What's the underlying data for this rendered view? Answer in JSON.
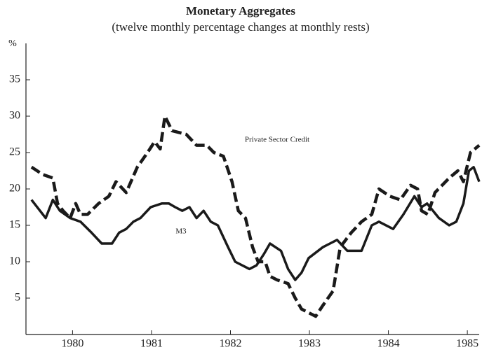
{
  "chart_data": {
    "type": "line",
    "title": "Monetary Aggregates",
    "subtitle": "(twelve monthly percentage changes at monthly rests)",
    "y_label": "%",
    "xlim": [
      1979.91,
      1985.65
    ],
    "xticks": [
      {
        "value": 1980.5,
        "label": "1980"
      },
      {
        "value": 1981.5,
        "label": "1981"
      },
      {
        "value": 1982.5,
        "label": "1982"
      },
      {
        "value": 1983.5,
        "label": "1983"
      },
      {
        "value": 1984.5,
        "label": "1984"
      },
      {
        "value": 1985.5,
        "label": "1985"
      }
    ],
    "ylim": [
      0,
      40
    ],
    "yticks": [
      5,
      10,
      15,
      20,
      25,
      30,
      35
    ],
    "grid": false,
    "annotations": [
      "Private Sector Credit",
      "M3"
    ],
    "series": [
      {
        "name": "Private Sector Credit",
        "color": "#1a1a1a",
        "style": "dashed",
        "x": [
          1979.98,
          1980.12,
          1980.25,
          1980.31,
          1980.38,
          1980.47,
          1980.54,
          1980.6,
          1980.69,
          1980.83,
          1980.96,
          1981.05,
          1981.18,
          1981.32,
          1981.45,
          1981.54,
          1981.61,
          1981.67,
          1981.76,
          1981.94,
          1982.07,
          1982.2,
          1982.29,
          1982.41,
          1982.52,
          1982.6,
          1982.69,
          1982.78,
          1982.85,
          1982.94,
          1983.0,
          1983.09,
          1983.23,
          1983.32,
          1983.4,
          1983.49,
          1983.58,
          1983.67,
          1983.8,
          1983.89,
          1984.03,
          1984.16,
          1984.29,
          1984.38,
          1984.52,
          1984.65,
          1984.78,
          1984.87,
          1984.92,
          1985.0,
          1985.09,
          1985.27,
          1985.38,
          1985.45,
          1985.54,
          1985.65
        ],
        "values": [
          23,
          22,
          21.5,
          18,
          17,
          16,
          18,
          16.5,
          16.5,
          18,
          19,
          21,
          19.5,
          23,
          25,
          26.5,
          25.5,
          30,
          28,
          27.5,
          26,
          26,
          25,
          24.5,
          21,
          17,
          16,
          12,
          10,
          10,
          8,
          7.5,
          7,
          5,
          3.5,
          3,
          2.5,
          4,
          6,
          12,
          14,
          15.5,
          16.5,
          20,
          19,
          18.5,
          20.5,
          20,
          17,
          16.5,
          19.5,
          21.5,
          22.5,
          21,
          25,
          26
        ]
      },
      {
        "name": "M3",
        "color": "#1a1a1a",
        "style": "solid",
        "x": [
          1979.98,
          1980.16,
          1980.25,
          1980.34,
          1980.47,
          1980.6,
          1980.74,
          1980.87,
          1981.0,
          1981.09,
          1981.18,
          1981.27,
          1981.36,
          1981.49,
          1981.63,
          1981.72,
          1981.8,
          1981.89,
          1981.98,
          1982.07,
          1982.16,
          1982.25,
          1982.34,
          1982.47,
          1982.56,
          1982.74,
          1982.83,
          1982.92,
          1983.0,
          1983.14,
          1983.23,
          1983.32,
          1983.4,
          1983.49,
          1983.67,
          1983.76,
          1983.85,
          1983.98,
          1984.16,
          1984.29,
          1984.38,
          1984.56,
          1984.69,
          1984.83,
          1984.92,
          1984.99,
          1985.14,
          1985.27,
          1985.36,
          1985.45,
          1985.52,
          1985.58,
          1985.65
        ],
        "values": [
          18.5,
          16,
          18.5,
          17,
          16,
          15.5,
          14,
          12.5,
          12.5,
          14,
          14.5,
          15.5,
          16,
          17.5,
          18,
          18,
          17.5,
          17,
          17.5,
          16,
          17,
          15.5,
          15,
          12,
          10,
          9,
          9.5,
          11,
          12.5,
          11.5,
          9,
          7.5,
          8.5,
          10.5,
          12,
          12.5,
          13,
          11.5,
          11.5,
          15,
          15.5,
          14.5,
          16.5,
          19,
          17.5,
          18,
          16,
          15,
          15.5,
          18,
          22.5,
          23,
          21
        ]
      }
    ]
  }
}
